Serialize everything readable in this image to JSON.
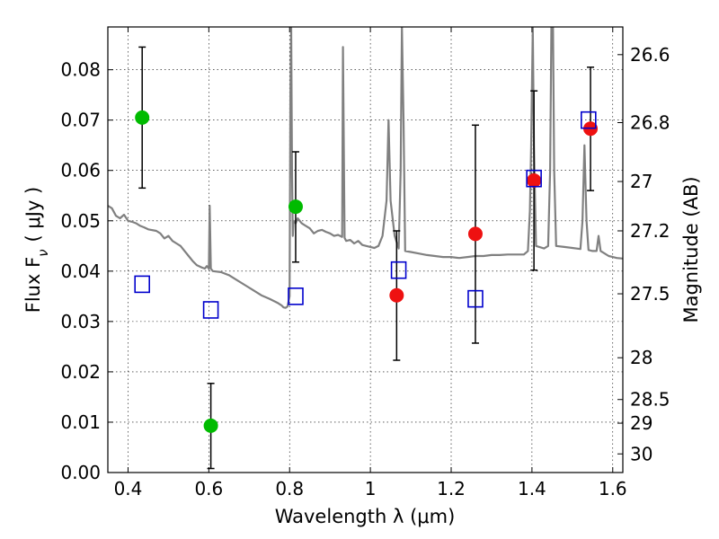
{
  "chart_data": {
    "type": "scatter",
    "xlabel": "Wavelength  λ (μm)",
    "ylabel": "Flux  F",
    "ylabel_sub": "ν",
    "ylabel_unit": "( μJy )",
    "y2label": "Magnitude (AB)",
    "xlim": [
      0.35,
      1.625
    ],
    "ylim": [
      0.0,
      0.0885
    ],
    "grid": true,
    "x_ticks": [
      {
        "value": 0.4,
        "label": "0.4"
      },
      {
        "value": 0.6,
        "label": "0.6"
      },
      {
        "value": 0.8,
        "label": "0.8"
      },
      {
        "value": 1.0,
        "label": "1"
      },
      {
        "value": 1.2,
        "label": "1.2"
      },
      {
        "value": 1.4,
        "label": "1.4"
      },
      {
        "value": 1.6,
        "label": "1.6"
      }
    ],
    "y_ticks": [
      {
        "value": 0.0,
        "label": "0.00"
      },
      {
        "value": 0.01,
        "label": "0.01"
      },
      {
        "value": 0.02,
        "label": "0.02"
      },
      {
        "value": 0.03,
        "label": "0.03"
      },
      {
        "value": 0.04,
        "label": "0.04"
      },
      {
        "value": 0.05,
        "label": "0.05"
      },
      {
        "value": 0.06,
        "label": "0.06"
      },
      {
        "value": 0.07,
        "label": "0.07"
      },
      {
        "value": 0.08,
        "label": "0.08"
      }
    ],
    "y2_ticks": [
      {
        "flux": 0.083,
        "label": "26.6"
      },
      {
        "flux": 0.0695,
        "label": "26.8"
      },
      {
        "flux": 0.0578,
        "label": "27"
      },
      {
        "flux": 0.048,
        "label": "27.2"
      },
      {
        "flux": 0.0355,
        "label": "27.5"
      },
      {
        "flux": 0.0228,
        "label": "28"
      },
      {
        "flux": 0.0145,
        "label": "28.5"
      },
      {
        "flux": 0.0098,
        "label": "29"
      },
      {
        "flux": 0.0037,
        "label": "30"
      }
    ],
    "series": [
      {
        "role": "green-detections",
        "color": "#00bb00",
        "marker": "circle",
        "points": [
          {
            "x": 0.435,
            "y": 0.0705,
            "err_lo": 0.0565,
            "err_hi": 0.0845
          },
          {
            "x": 0.605,
            "y": 0.0093,
            "err_lo": 0.0008,
            "err_hi": 0.0177
          },
          {
            "x": 0.815,
            "y": 0.0528,
            "err_lo": 0.0418,
            "err_hi": 0.0637
          }
        ]
      },
      {
        "role": "red-detections",
        "color": "#ee1111",
        "marker": "circle",
        "points": [
          {
            "x": 1.065,
            "y": 0.0352,
            "err_lo": 0.0223,
            "err_hi": 0.048
          },
          {
            "x": 1.26,
            "y": 0.0474,
            "err_lo": 0.0257,
            "err_hi": 0.069
          },
          {
            "x": 1.405,
            "y": 0.058,
            "err_lo": 0.0402,
            "err_hi": 0.0758
          },
          {
            "x": 1.545,
            "y": 0.0683,
            "err_lo": 0.056,
            "err_hi": 0.0805
          }
        ]
      },
      {
        "role": "model-photometry",
        "color": "#0000cc",
        "marker": "open-square",
        "points": [
          {
            "x": 0.435,
            "y": 0.0374
          },
          {
            "x": 0.605,
            "y": 0.0323
          },
          {
            "x": 0.815,
            "y": 0.035
          },
          {
            "x": 1.07,
            "y": 0.0402
          },
          {
            "x": 1.26,
            "y": 0.0345
          },
          {
            "x": 1.405,
            "y": 0.0584
          },
          {
            "x": 1.54,
            "y": 0.07
          }
        ]
      }
    ],
    "spectrum": {
      "color": "#808080",
      "points": [
        [
          0.35,
          0.053
        ],
        [
          0.36,
          0.0525
        ],
        [
          0.37,
          0.051
        ],
        [
          0.38,
          0.0505
        ],
        [
          0.39,
          0.0512
        ],
        [
          0.4,
          0.05
        ],
        [
          0.41,
          0.0498
        ],
        [
          0.42,
          0.0495
        ],
        [
          0.43,
          0.049
        ],
        [
          0.44,
          0.0487
        ],
        [
          0.45,
          0.0483
        ],
        [
          0.47,
          0.048
        ],
        [
          0.48,
          0.0475
        ],
        [
          0.49,
          0.0465
        ],
        [
          0.5,
          0.047
        ],
        [
          0.51,
          0.046
        ],
        [
          0.52,
          0.0455
        ],
        [
          0.53,
          0.045
        ],
        [
          0.54,
          0.044
        ],
        [
          0.55,
          0.043
        ],
        [
          0.56,
          0.042
        ],
        [
          0.57,
          0.0412
        ],
        [
          0.58,
          0.0408
        ],
        [
          0.59,
          0.0405
        ],
        [
          0.595,
          0.041
        ],
        [
          0.6,
          0.0405
        ],
        [
          0.602,
          0.053
        ],
        [
          0.605,
          0.0405
        ],
        [
          0.61,
          0.04
        ],
        [
          0.63,
          0.0398
        ],
        [
          0.65,
          0.0392
        ],
        [
          0.67,
          0.0382
        ],
        [
          0.69,
          0.0372
        ],
        [
          0.71,
          0.0362
        ],
        [
          0.73,
          0.0352
        ],
        [
          0.75,
          0.0345
        ],
        [
          0.77,
          0.0337
        ],
        [
          0.78,
          0.0332
        ],
        [
          0.785,
          0.0328
        ],
        [
          0.79,
          0.0327
        ],
        [
          0.795,
          0.033
        ],
        [
          0.8,
          0.035
        ],
        [
          0.802,
          0.075
        ],
        [
          0.804,
          0.0885
        ],
        [
          0.806,
          0.06
        ],
        [
          0.808,
          0.047
        ],
        [
          0.81,
          0.05
        ],
        [
          0.815,
          0.0495
        ],
        [
          0.82,
          0.0505
        ],
        [
          0.83,
          0.0495
        ],
        [
          0.84,
          0.049
        ],
        [
          0.85,
          0.0485
        ],
        [
          0.86,
          0.0475
        ],
        [
          0.87,
          0.048
        ],
        [
          0.88,
          0.0482
        ],
        [
          0.89,
          0.0478
        ],
        [
          0.9,
          0.0475
        ],
        [
          0.91,
          0.047
        ],
        [
          0.92,
          0.0472
        ],
        [
          0.93,
          0.0468
        ],
        [
          0.932,
          0.0845
        ],
        [
          0.936,
          0.0466
        ],
        [
          0.94,
          0.046
        ],
        [
          0.95,
          0.0462
        ],
        [
          0.96,
          0.0455
        ],
        [
          0.97,
          0.046
        ],
        [
          0.98,
          0.0452
        ],
        [
          0.99,
          0.045
        ],
        [
          1.0,
          0.0448
        ],
        [
          1.01,
          0.0446
        ],
        [
          1.02,
          0.045
        ],
        [
          1.03,
          0.047
        ],
        [
          1.04,
          0.054
        ],
        [
          1.045,
          0.07
        ],
        [
          1.05,
          0.054
        ],
        [
          1.06,
          0.047
        ],
        [
          1.07,
          0.0445
        ],
        [
          1.075,
          0.06
        ],
        [
          1.078,
          0.0885
        ],
        [
          1.082,
          0.07
        ],
        [
          1.086,
          0.044
        ],
        [
          1.1,
          0.0438
        ],
        [
          1.12,
          0.0435
        ],
        [
          1.14,
          0.0432
        ],
        [
          1.16,
          0.043
        ],
        [
          1.18,
          0.0428
        ],
        [
          1.2,
          0.0428
        ],
        [
          1.22,
          0.0426
        ],
        [
          1.24,
          0.0428
        ],
        [
          1.26,
          0.043
        ],
        [
          1.28,
          0.043
        ],
        [
          1.3,
          0.0432
        ],
        [
          1.32,
          0.0432
        ],
        [
          1.34,
          0.0433
        ],
        [
          1.36,
          0.0433
        ],
        [
          1.38,
          0.0433
        ],
        [
          1.39,
          0.044
        ],
        [
          1.395,
          0.052
        ],
        [
          1.398,
          0.065
        ],
        [
          1.402,
          0.0885
        ],
        [
          1.405,
          0.065
        ],
        [
          1.41,
          0.045
        ],
        [
          1.43,
          0.0445
        ],
        [
          1.44,
          0.045
        ],
        [
          1.445,
          0.06
        ],
        [
          1.448,
          0.0885
        ],
        [
          1.452,
          0.0885
        ],
        [
          1.455,
          0.06
        ],
        [
          1.46,
          0.045
        ],
        [
          1.48,
          0.0448
        ],
        [
          1.5,
          0.0446
        ],
        [
          1.52,
          0.0444
        ],
        [
          1.525,
          0.05
        ],
        [
          1.53,
          0.065
        ],
        [
          1.535,
          0.05
        ],
        [
          1.54,
          0.0442
        ],
        [
          1.55,
          0.044
        ],
        [
          1.56,
          0.044
        ],
        [
          1.565,
          0.047
        ],
        [
          1.57,
          0.044
        ],
        [
          1.58,
          0.0435
        ],
        [
          1.59,
          0.043
        ],
        [
          1.6,
          0.0428
        ],
        [
          1.61,
          0.0426
        ],
        [
          1.625,
          0.0425
        ]
      ]
    }
  }
}
